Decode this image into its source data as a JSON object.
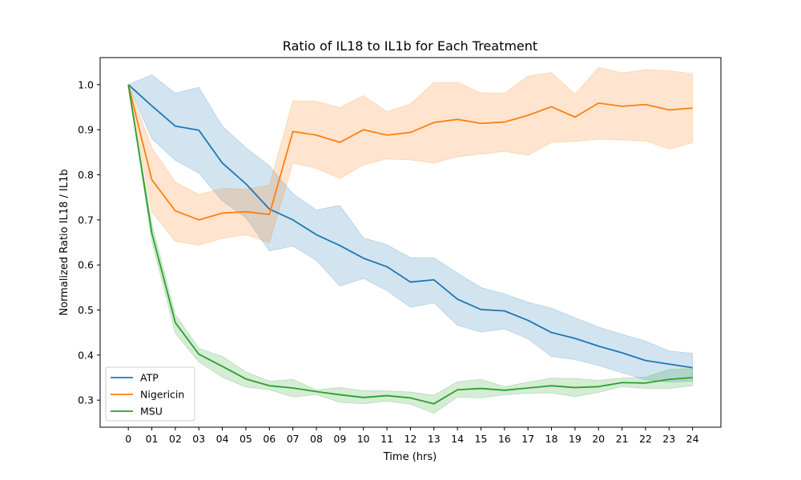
{
  "chart_data": {
    "type": "line",
    "title": "Ratio of IL18 to IL1b for Each Treatment",
    "xlabel": "Time (hrs)",
    "ylabel": "Normalized Ratio IL18 / IL1b",
    "x": [
      "0",
      "01",
      "02",
      "03",
      "04",
      "05",
      "06",
      "07",
      "08",
      "09",
      "10",
      "11",
      "12",
      "13",
      "14",
      "15",
      "16",
      "17",
      "18",
      "19",
      "20",
      "21",
      "22",
      "23",
      "24"
    ],
    "ylim": [
      0.24,
      1.06
    ],
    "yticks": [
      0.3,
      0.4,
      0.5,
      0.6,
      0.7,
      0.8,
      0.9,
      1.0
    ],
    "ytick_labels": [
      "0.3",
      "0.4",
      "0.5",
      "0.6",
      "0.7",
      "0.8",
      "0.9",
      "1.0"
    ],
    "grid": false,
    "legend_position": "lower-left",
    "series": [
      {
        "name": "ATP",
        "color": "#1f77b4",
        "values": [
          1.0,
          0.953,
          0.908,
          0.899,
          0.826,
          0.78,
          0.724,
          0.7,
          0.667,
          0.643,
          0.615,
          0.596,
          0.562,
          0.567,
          0.524,
          0.501,
          0.498,
          0.477,
          0.45,
          0.437,
          0.42,
          0.405,
          0.388,
          0.38,
          0.372
        ],
        "lower": [
          1.0,
          0.88,
          0.832,
          0.804,
          0.742,
          0.705,
          0.631,
          0.642,
          0.61,
          0.553,
          0.57,
          0.543,
          0.506,
          0.516,
          0.466,
          0.451,
          0.458,
          0.436,
          0.397,
          0.39,
          0.377,
          0.361,
          0.345,
          0.34,
          0.342
        ],
        "upper": [
          1.0,
          1.022,
          0.981,
          0.994,
          0.908,
          0.86,
          0.82,
          0.758,
          0.722,
          0.732,
          0.66,
          0.645,
          0.616,
          0.616,
          0.582,
          0.55,
          0.536,
          0.517,
          0.504,
          0.483,
          0.462,
          0.446,
          0.431,
          0.409,
          0.404
        ]
      },
      {
        "name": "Nigericin",
        "color": "#ff7f0e",
        "values": [
          1.0,
          0.789,
          0.72,
          0.7,
          0.715,
          0.718,
          0.712,
          0.896,
          0.888,
          0.872,
          0.9,
          0.888,
          0.894,
          0.916,
          0.923,
          0.914,
          0.917,
          0.932,
          0.951,
          0.928,
          0.959,
          0.952,
          0.956,
          0.944,
          0.948
        ],
        "lower": [
          1.0,
          0.717,
          0.652,
          0.644,
          0.659,
          0.667,
          0.649,
          0.826,
          0.814,
          0.792,
          0.822,
          0.835,
          0.833,
          0.826,
          0.84,
          0.846,
          0.852,
          0.843,
          0.872,
          0.874,
          0.879,
          0.877,
          0.875,
          0.857,
          0.871
        ],
        "upper": [
          1.0,
          0.86,
          0.784,
          0.756,
          0.77,
          0.768,
          0.777,
          0.964,
          0.963,
          0.949,
          0.976,
          0.94,
          0.957,
          1.005,
          1.005,
          0.982,
          0.981,
          1.019,
          1.027,
          0.979,
          1.038,
          1.026,
          1.033,
          1.031,
          1.024
        ]
      },
      {
        "name": "MSU",
        "color": "#2ca02c",
        "values": [
          1.0,
          0.671,
          0.472,
          0.402,
          0.375,
          0.347,
          0.332,
          0.327,
          0.319,
          0.312,
          0.306,
          0.31,
          0.305,
          0.292,
          0.323,
          0.326,
          0.322,
          0.327,
          0.332,
          0.328,
          0.33,
          0.339,
          0.338,
          0.346,
          0.35
        ],
        "lower": [
          1.0,
          0.652,
          0.448,
          0.385,
          0.351,
          0.329,
          0.323,
          0.307,
          0.312,
          0.295,
          0.292,
          0.298,
          0.291,
          0.271,
          0.307,
          0.305,
          0.312,
          0.315,
          0.316,
          0.308,
          0.317,
          0.33,
          0.326,
          0.326,
          0.332
        ],
        "upper": [
          1.0,
          0.692,
          0.49,
          0.415,
          0.397,
          0.363,
          0.342,
          0.346,
          0.323,
          0.328,
          0.321,
          0.321,
          0.318,
          0.311,
          0.341,
          0.346,
          0.33,
          0.34,
          0.349,
          0.348,
          0.344,
          0.349,
          0.351,
          0.368,
          0.37
        ]
      }
    ]
  }
}
